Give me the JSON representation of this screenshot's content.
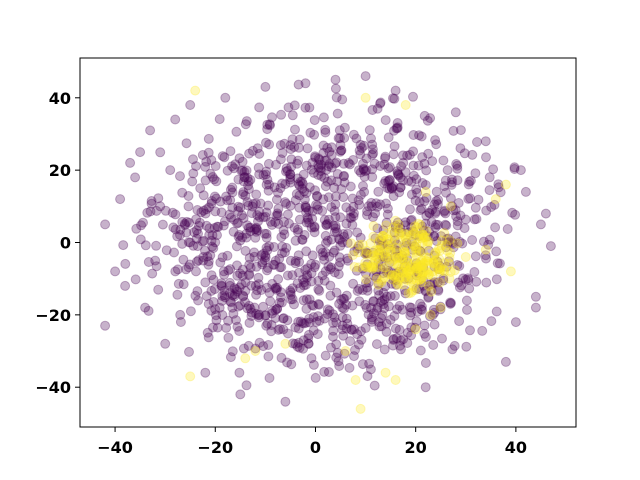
{
  "chart_data": {
    "type": "scatter",
    "title": "",
    "xlabel": "",
    "ylabel": "",
    "xlim": [
      -47,
      52
    ],
    "ylim": [
      -51,
      51
    ],
    "x_ticks": [
      -40,
      -20,
      0,
      20,
      40
    ],
    "x_tick_labels": [
      "−40",
      "−20",
      "0",
      "20",
      "40"
    ],
    "y_ticks": [
      -40,
      -20,
      0,
      20,
      40
    ],
    "y_tick_labels": [
      "−40",
      "−20",
      "0",
      "20",
      "40"
    ],
    "grid": false,
    "legend": "none",
    "marker_alpha": 0.3,
    "series": [
      {
        "color": "#440154",
        "distribution": "ellipse",
        "center": [
          2,
          1
        ],
        "radius": [
          44,
          44
        ],
        "count": 1250,
        "points": [
          [
            -42,
            5
          ],
          [
            -42,
            -23
          ],
          [
            -38,
            -12
          ],
          [
            -36,
            18
          ],
          [
            -35,
            25
          ],
          [
            -33,
            31
          ],
          [
            -30,
            -28
          ],
          [
            -28,
            34
          ],
          [
            -25,
            38
          ],
          [
            -22,
            -36
          ],
          [
            -18,
            40
          ],
          [
            -15,
            -42
          ],
          [
            -10,
            43
          ],
          [
            -6,
            -44
          ],
          [
            -2,
            44
          ],
          [
            4,
            45
          ],
          [
            10,
            46
          ],
          [
            16,
            42
          ],
          [
            22,
            -40
          ],
          [
            28,
            36
          ],
          [
            34,
            28
          ],
          [
            38,
            -33
          ],
          [
            41,
            20
          ],
          [
            44,
            -15
          ],
          [
            46,
            8
          ],
          [
            47,
            -1
          ],
          [
            45,
            5
          ],
          [
            44,
            -18
          ],
          [
            42,
            14
          ],
          [
            40,
            -22
          ],
          [
            -40,
            -8
          ],
          [
            -39,
            12
          ],
          [
            -37,
            22
          ],
          [
            -34,
            -18
          ],
          [
            -32,
            -5
          ],
          [
            -31,
            10
          ],
          [
            -29,
            20
          ],
          [
            -27,
            -20
          ],
          [
            -25,
            0
          ],
          [
            -23,
            15
          ]
        ]
      },
      {
        "color": "#fde725",
        "distribution": "ellipse",
        "center": [
          18,
          -4
        ],
        "radius": [
          12,
          11
        ],
        "count": 260,
        "points": [
          [
            -24,
            42
          ],
          [
            -25,
            -37
          ],
          [
            -14,
            -32
          ],
          [
            -12,
            -30
          ],
          [
            -6,
            -28
          ],
          [
            6,
            -30
          ],
          [
            9,
            -46
          ],
          [
            8,
            -38
          ],
          [
            10,
            40
          ],
          [
            14,
            -36
          ],
          [
            16,
            -38
          ],
          [
            18,
            38
          ],
          [
            20,
            -24
          ],
          [
            23,
            -20
          ],
          [
            25,
            -18
          ],
          [
            27,
            10
          ],
          [
            30,
            -4
          ],
          [
            34,
            -2
          ],
          [
            36,
            12
          ],
          [
            38,
            16
          ],
          [
            39,
            -8
          ],
          [
            22,
            14
          ],
          [
            15,
            -2
          ],
          [
            17,
            -8
          ],
          [
            19,
            2
          ]
        ]
      }
    ]
  }
}
